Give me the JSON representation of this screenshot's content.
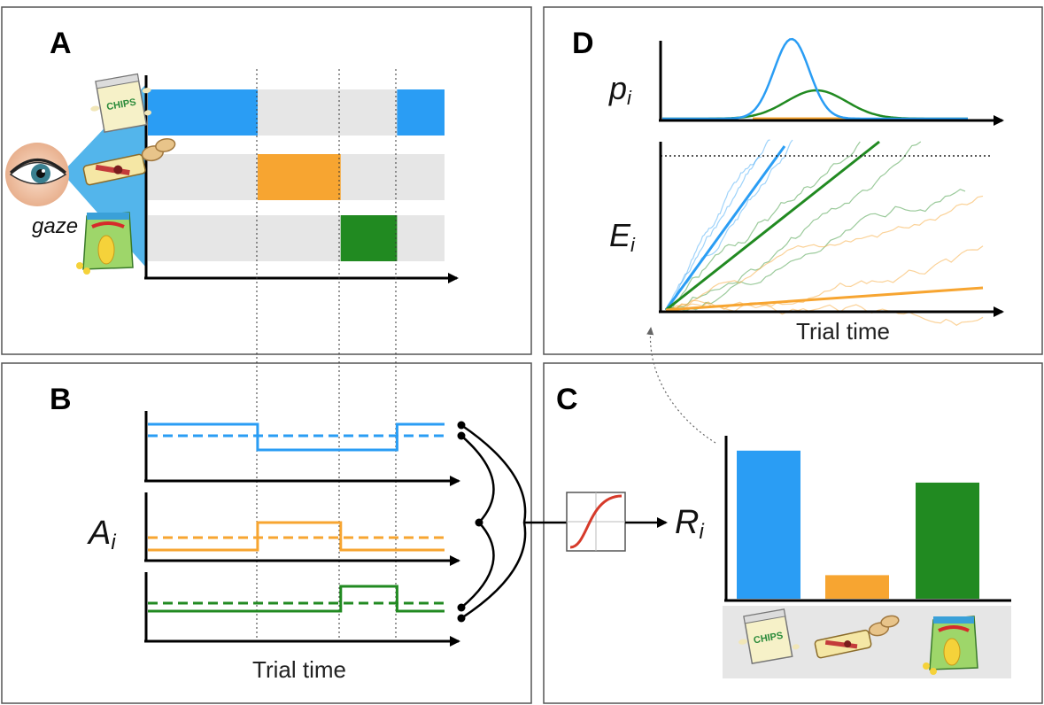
{
  "panels": {
    "A": {
      "letter": "A",
      "gaze_label": "gaze"
    },
    "B": {
      "letter": "B",
      "var_main": "A",
      "var_sub": "i",
      "xlabel": "Trial time"
    },
    "C": {
      "letter": "C",
      "var_main": "R",
      "var_sub": "i"
    },
    "D": {
      "letter": "D",
      "top_var_main": "p",
      "top_var_sub": "i",
      "bottom_var_main": "E",
      "bottom_var_sub": "i",
      "xlabel": "Trial time"
    }
  },
  "items": [
    {
      "name": "chips",
      "color": "#2a9df4",
      "bag_text": "CHIPS"
    },
    {
      "name": "cracker-roll",
      "color": "#f7a531"
    },
    {
      "name": "corn-snack",
      "color": "#218a21"
    }
  ],
  "gaze_segments": [
    {
      "item": 0,
      "start": 0.0,
      "end": 0.37
    },
    {
      "item": 1,
      "start": 0.37,
      "end": 0.65
    },
    {
      "item": 2,
      "start": 0.65,
      "end": 0.84
    },
    {
      "item": 0,
      "start": 0.84,
      "end": 1.0
    }
  ],
  "relative_values": [
    0.88,
    0.14,
    0.69
  ],
  "colors": {
    "bg_row": "#e6e6e6",
    "sigmoid": "#d63a2a",
    "frame": "#555555"
  }
}
